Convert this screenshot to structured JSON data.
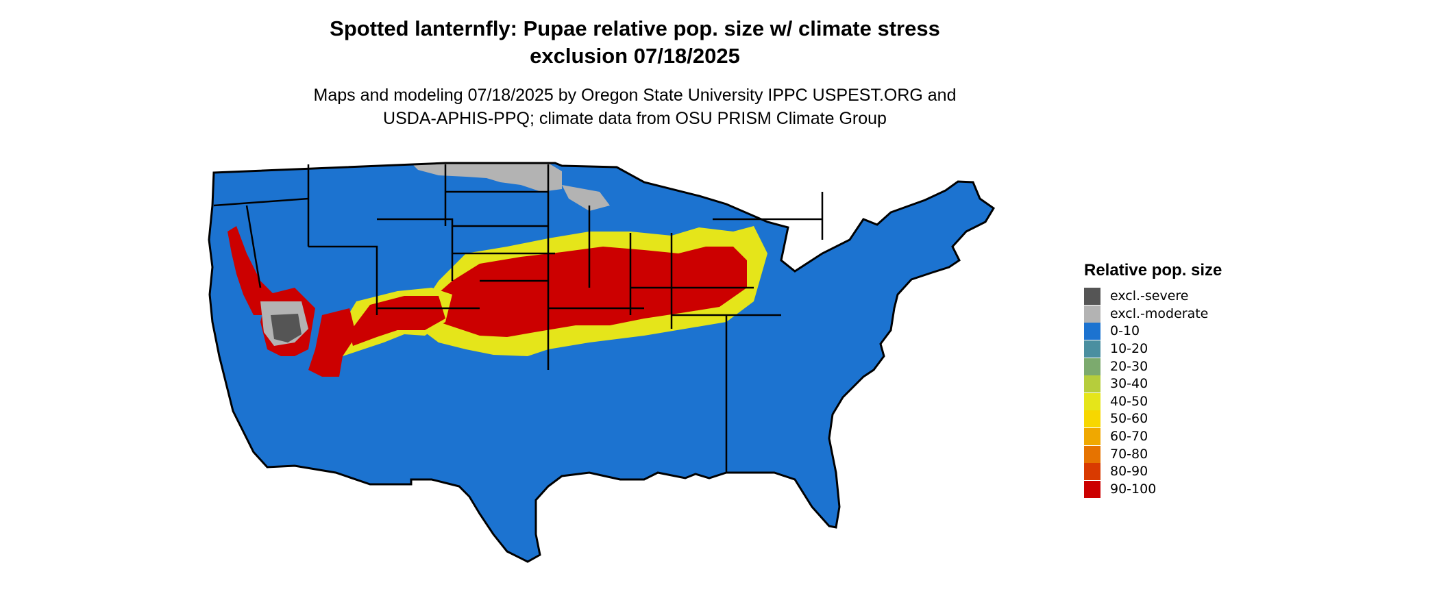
{
  "title": {
    "line1": "Spotted lanternfly: Pupae relative pop. size w/ climate stress",
    "line2": "exclusion 07/18/2025"
  },
  "subtitle": {
    "line1": "Maps and modeling 07/18/2025 by Oregon State University IPPC USPEST.ORG and",
    "line2": "USDA-APHIS-PPQ; climate data from OSU PRISM Climate Group"
  },
  "legend": {
    "title": "Relative pop. size",
    "items": [
      {
        "label": "excl.-severe",
        "color": "#555555"
      },
      {
        "label": "excl.-moderate",
        "color": "#b3b3b3"
      },
      {
        "label": "0-10",
        "color": "#1c73d0"
      },
      {
        "label": "10-20",
        "color": "#4a8fa0"
      },
      {
        "label": "20-30",
        "color": "#7caa6e"
      },
      {
        "label": "30-40",
        "color": "#b6cd3c"
      },
      {
        "label": "40-50",
        "color": "#e5e51a"
      },
      {
        "label": "50-60",
        "color": "#f7d700"
      },
      {
        "label": "60-70",
        "color": "#f0a800"
      },
      {
        "label": "70-80",
        "color": "#e67300"
      },
      {
        "label": "80-90",
        "color": "#d93a00"
      },
      {
        "label": "90-100",
        "color": "#cc0000"
      }
    ]
  },
  "map": {
    "region": "Contiguous United States",
    "base_color": "#1c73d0",
    "high_color": "#cc0000",
    "mid_color": "#e5e51a",
    "excl_moderate_color": "#b3b3b3",
    "excl_severe_color": "#555555",
    "border_color": "#000000"
  }
}
